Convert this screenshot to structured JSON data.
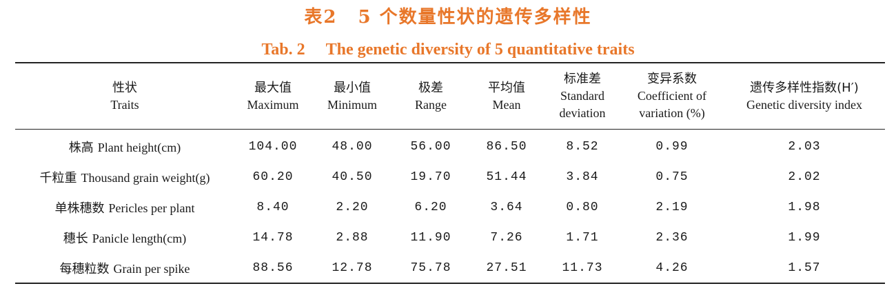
{
  "caption": {
    "cn_label": "表2",
    "cn_title": "5 个数量性状的遗传多样性",
    "en_label": "Tab. 2",
    "en_title": "The genetic diversity of 5 quantitative traits"
  },
  "table": {
    "headers": [
      {
        "cn": "性状",
        "en": [
          "Traits"
        ]
      },
      {
        "cn": "最大值",
        "en": [
          "Maximum"
        ]
      },
      {
        "cn": "最小值",
        "en": [
          "Minimum"
        ]
      },
      {
        "cn": "极差",
        "en": [
          "Range"
        ]
      },
      {
        "cn": "平均值",
        "en": [
          "Mean"
        ]
      },
      {
        "cn": "标准差",
        "en": [
          "Standard",
          "deviation"
        ]
      },
      {
        "cn": "变异系数",
        "en": [
          "Coefficient of",
          "variation (%)"
        ]
      },
      {
        "cn": "遗传多样性指数(H′)",
        "en": [
          "Genetic diversity index"
        ]
      }
    ],
    "rows": [
      {
        "trait_cn": "株高",
        "trait_en": "Plant height(cm)",
        "values": [
          "104.00",
          "48.00",
          "56.00",
          "86.50",
          "8.52",
          "0.99",
          "2.03"
        ]
      },
      {
        "trait_cn": "千粒重",
        "trait_en": "Thousand grain weight(g)",
        "values": [
          "60.20",
          "40.50",
          "19.70",
          "51.44",
          "3.84",
          "0.75",
          "2.02"
        ]
      },
      {
        "trait_cn": "单株穗数",
        "trait_en": "Pericles per plant",
        "values": [
          "8.40",
          "2.20",
          "6.20",
          "3.64",
          "0.80",
          "2.19",
          "1.98"
        ]
      },
      {
        "trait_cn": "穗长",
        "trait_en": "Panicle length(cm)",
        "values": [
          "14.78",
          "2.88",
          "11.90",
          "7.26",
          "1.71",
          "2.36",
          "1.99"
        ]
      },
      {
        "trait_cn": "每穗粒数",
        "trait_en": "Grain per spike",
        "values": [
          "88.56",
          "12.78",
          "75.78",
          "27.51",
          "11.73",
          "4.26",
          "1.57"
        ]
      }
    ]
  },
  "colors": {
    "caption": "#e8772a",
    "text": "#1a1a1a",
    "rules": "#222222"
  }
}
